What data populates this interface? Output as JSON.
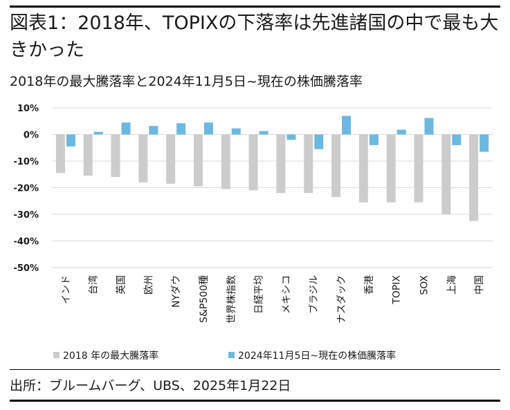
{
  "header": {
    "title": "図表1：2018年、TOPIXの下落率は先進諸国の中で最も大きかった",
    "subtitle": "2018年の最大騰落率と2024年11月5日~現在の株価騰落率"
  },
  "footer": {
    "source": "出所：ブルームバーグ、UBS、2025年1月22日"
  },
  "colors": {
    "series1": "#cccccc",
    "series2": "#6cb8e0",
    "grid": "#d9d9d9",
    "text": "#1a1a1a"
  },
  "chart_data": {
    "type": "bar",
    "categories": [
      "インド",
      "台湾",
      "英国",
      "欧州",
      "NYダウ",
      "S&P500種",
      "世界株指数",
      "日経平均",
      "メキシコ",
      "ブラジル",
      "ナスダック",
      "香港",
      "TOPIX",
      "SOX",
      "上海",
      "中国"
    ],
    "series": [
      {
        "name": "2018 年の最大騰落率",
        "values": [
          -14.5,
          -15.5,
          -16,
          -18,
          -18.5,
          -19.5,
          -20.5,
          -21,
          -22,
          -22,
          -23.5,
          -25.5,
          -25.5,
          -25.5,
          -30,
          -32.5
        ]
      },
      {
        "name": "2024年11月5日~現在の株価騰落率",
        "values": [
          -4.5,
          1,
          4.5,
          3.2,
          4.2,
          4.5,
          2.3,
          1.3,
          -2,
          -5.5,
          7,
          -4,
          1.8,
          6.2,
          -4,
          -6.5
        ]
      }
    ],
    "yticks": [
      "10%",
      "0%",
      "-10%",
      "-20%",
      "-30%",
      "-40%",
      "-50%"
    ],
    "ylim": [
      -50,
      10
    ],
    "grid": true,
    "legend_position": "bottom"
  }
}
